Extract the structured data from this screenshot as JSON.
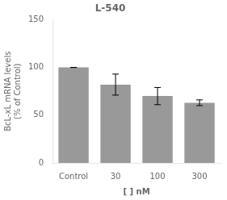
{
  "chart_data": {
    "type": "bar",
    "title": "L-540",
    "xlabel": "[ ] nM",
    "ylabel": "BcL-xL mRNA levels\n(% of Control)",
    "categories": [
      "Control",
      "30",
      "100",
      "300"
    ],
    "values": [
      100,
      82,
      70,
      63
    ],
    "errors": [
      0,
      11,
      9,
      3
    ],
    "color": "#999999",
    "ylim": [
      0,
      150
    ],
    "yticks": [
      0,
      50,
      100,
      150
    ],
    "grid": false
  }
}
